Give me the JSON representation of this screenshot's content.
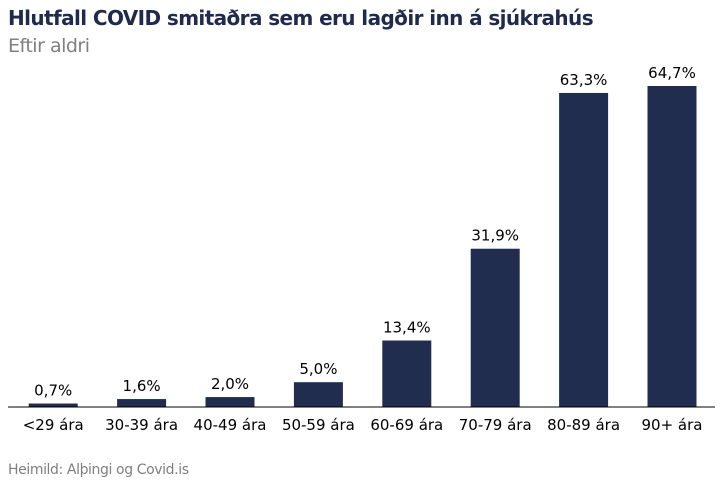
{
  "chart_data": {
    "type": "bar",
    "title": "Hlutfall COVID smitaðra sem eru lagðir inn á sjúkrahús",
    "subtitle": "Eftir aldri",
    "categories": [
      "<29 ára",
      "30-39 ára",
      "40-49 ára",
      "50-59 ára",
      "60-69 ára",
      "70-79 ára",
      "80-89 ára",
      "90+ ára"
    ],
    "values": [
      0.7,
      1.6,
      2.0,
      5.0,
      13.4,
      31.9,
      63.3,
      64.7
    ],
    "data_labels": [
      "0,7%",
      "1,6%",
      "2,0%",
      "5,0%",
      "13,4%",
      "31,9%",
      "63,3%",
      "64,7%"
    ],
    "xlabel": "",
    "ylabel": "",
    "ylim": [
      0,
      65
    ],
    "grid": false,
    "legend": "none",
    "bar_color": "#212d4f",
    "source": "Heimild: Alþingi og Covid.is"
  }
}
